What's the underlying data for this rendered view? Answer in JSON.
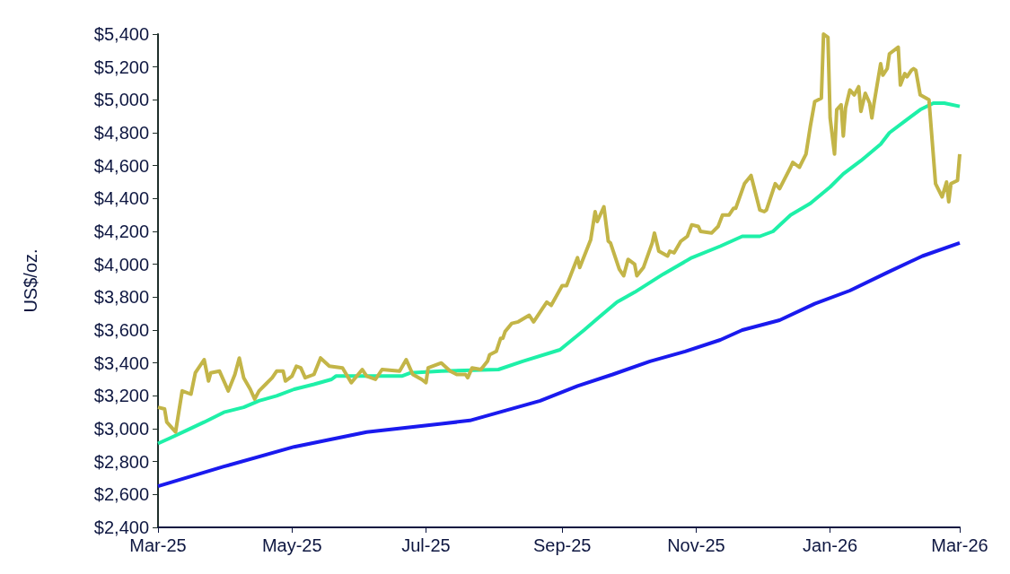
{
  "chart_data": {
    "type": "line",
    "ylabel": "US$/oz.",
    "xlim": [
      "2025-03-01",
      "2026-03-01"
    ],
    "xticks": [
      {
        "value": "2025-03-01",
        "label": "Mar-25"
      },
      {
        "value": "2025-05-01",
        "label": "May-25"
      },
      {
        "value": "2025-07-01",
        "label": "Jul-25"
      },
      {
        "value": "2025-09-01",
        "label": "Sep-25"
      },
      {
        "value": "2025-11-01",
        "label": "Nov-25"
      },
      {
        "value": "2026-01-01",
        "label": "Jan-26"
      },
      {
        "value": "2026-03-01",
        "label": "Mar-26"
      }
    ],
    "ylim": [
      2400,
      5400
    ],
    "yticks": [
      {
        "value": 2400,
        "label": "$2,400"
      },
      {
        "value": 2600,
        "label": "$2,600"
      },
      {
        "value": 2800,
        "label": "$2,800"
      },
      {
        "value": 3000,
        "label": "$3,000"
      },
      {
        "value": 3200,
        "label": "$3,200"
      },
      {
        "value": 3400,
        "label": "$3,400"
      },
      {
        "value": 3600,
        "label": "$3,600"
      },
      {
        "value": 3800,
        "label": "$3,800"
      },
      {
        "value": 4000,
        "label": "$4,000"
      },
      {
        "value": 4200,
        "label": "$4,200"
      },
      {
        "value": 4400,
        "label": "$4,400"
      },
      {
        "value": 4600,
        "label": "$4,600"
      },
      {
        "value": 4800,
        "label": "$4,800"
      },
      {
        "value": 5000,
        "label": "$5,000"
      },
      {
        "value": 5200,
        "label": "$5,200"
      },
      {
        "value": 5400,
        "label": "$5,400"
      }
    ],
    "grid": false,
    "series": [
      {
        "color": "#1a1aee",
        "x": [
          "2025-03-01",
          "2025-03-31",
          "2025-05-02",
          "2025-06-04",
          "2025-07-08",
          "2025-07-21",
          "2025-08-06",
          "2025-08-22",
          "2025-09-08",
          "2025-09-24",
          "2025-10-11",
          "2025-10-27",
          "2025-11-12",
          "2025-11-22",
          "2025-12-09",
          "2025-12-25",
          "2026-01-10",
          "2026-01-27",
          "2026-02-12",
          "2026-03-01"
        ],
        "values": [
          2650,
          2770,
          2890,
          2980,
          3030,
          3050,
          3110,
          3170,
          3260,
          3330,
          3410,
          3470,
          3540,
          3600,
          3660,
          3760,
          3840,
          3950,
          4050,
          4130
        ]
      },
      {
        "color": "#1ef0a8",
        "x": [
          "2025-03-01",
          "2025-03-06",
          "2025-03-14",
          "2025-03-22",
          "2025-03-31",
          "2025-04-09",
          "2025-04-16",
          "2025-04-24",
          "2025-05-02",
          "2025-05-11",
          "2025-05-19",
          "2025-05-21",
          "2025-05-27",
          "2025-06-12",
          "2025-06-20",
          "2025-06-24",
          "2025-07-08",
          "2025-08-03",
          "2025-08-14",
          "2025-08-31",
          "2025-09-11",
          "2025-09-18",
          "2025-09-26",
          "2025-10-04",
          "2025-10-17",
          "2025-10-30",
          "2025-11-12",
          "2025-11-22",
          "2025-11-30",
          "2025-12-06",
          "2025-12-14",
          "2025-12-23",
          "2026-01-01",
          "2026-01-07",
          "2026-01-15",
          "2026-01-24",
          "2026-01-28",
          "2026-02-04",
          "2026-02-11",
          "2026-02-17",
          "2026-02-22",
          "2026-03-01"
        ],
        "values": [
          2910,
          2940,
          2990,
          3040,
          3100,
          3130,
          3170,
          3200,
          3240,
          3270,
          3300,
          3320,
          3320,
          3320,
          3320,
          3340,
          3350,
          3360,
          3410,
          3480,
          3600,
          3680,
          3770,
          3830,
          3940,
          4040,
          4110,
          4170,
          4170,
          4200,
          4300,
          4370,
          4470,
          4550,
          4630,
          4730,
          4800,
          4870,
          4940,
          4980,
          4980,
          4960
        ]
      },
      {
        "color": "#c3b548",
        "x": [
          "2025-03-01",
          "2025-03-04",
          "2025-03-05",
          "2025-03-09",
          "2025-03-12",
          "2025-03-16",
          "2025-03-18",
          "2025-03-22",
          "2025-03-24",
          "2025-03-25",
          "2025-03-29",
          "2025-04-02",
          "2025-04-05",
          "2025-04-07",
          "2025-04-09",
          "2025-04-12",
          "2025-04-14",
          "2025-04-16",
          "2025-04-19",
          "2025-04-22",
          "2025-04-24",
          "2025-04-27",
          "2025-04-28",
          "2025-05-01",
          "2025-05-03",
          "2025-05-05",
          "2025-05-07",
          "2025-05-11",
          "2025-05-14",
          "2025-05-18",
          "2025-05-24",
          "2025-05-28",
          "2025-06-02",
          "2025-06-04",
          "2025-06-08",
          "2025-06-11",
          "2025-06-19",
          "2025-06-22",
          "2025-06-25",
          "2025-06-29",
          "2025-07-01",
          "2025-07-02",
          "2025-07-08",
          "2025-07-12",
          "2025-07-15",
          "2025-07-19",
          "2025-07-20",
          "2025-07-22",
          "2025-07-26",
          "2025-07-29",
          "2025-07-30",
          "2025-08-02",
          "2025-08-04",
          "2025-08-05",
          "2025-08-06",
          "2025-08-09",
          "2025-08-12",
          "2025-08-17",
          "2025-08-19",
          "2025-08-23",
          "2025-08-25",
          "2025-08-27",
          "2025-09-01",
          "2025-09-03",
          "2025-09-08",
          "2025-09-09",
          "2025-09-14",
          "2025-09-16",
          "2025-09-17",
          "2025-09-20",
          "2025-09-22",
          "2025-09-23",
          "2025-09-27",
          "2025-09-29",
          "2025-10-01",
          "2025-10-04",
          "2025-10-05",
          "2025-10-08",
          "2025-10-12",
          "2025-10-13",
          "2025-10-15",
          "2025-10-19",
          "2025-10-20",
          "2025-10-22",
          "2025-10-25",
          "2025-10-28",
          "2025-10-30",
          "2025-11-02",
          "2025-11-03",
          "2025-11-08",
          "2025-11-11",
          "2025-11-13",
          "2025-11-16",
          "2025-11-18",
          "2025-11-19",
          "2025-11-23",
          "2025-11-26",
          "2025-11-30",
          "2025-12-02",
          "2025-12-03",
          "2025-12-07",
          "2025-12-09",
          "2025-12-14",
          "2025-12-15",
          "2025-12-18",
          "2025-12-21",
          "2025-12-23",
          "2025-12-25",
          "2025-12-28",
          "2025-12-29",
          "2025-12-31",
          "2026-01-01",
          "2026-01-03",
          "2026-01-04",
          "2026-01-06",
          "2026-01-07",
          "2026-01-08",
          "2026-01-10",
          "2026-01-12",
          "2026-01-14",
          "2026-01-15",
          "2026-01-17",
          "2026-01-19",
          "2026-01-20",
          "2026-01-21",
          "2026-01-24",
          "2026-01-25",
          "2026-01-27",
          "2026-01-28",
          "2026-02-01",
          "2026-02-02",
          "2026-02-04",
          "2026-02-05",
          "2026-02-07",
          "2026-02-08",
          "2026-02-09",
          "2026-02-11",
          "2026-02-15",
          "2026-02-18",
          "2026-02-21",
          "2026-02-23",
          "2026-02-24",
          "2026-02-25",
          "2026-02-28",
          "2026-03-01"
        ],
        "values": [
          3130,
          3120,
          3040,
          2980,
          3230,
          3210,
          3340,
          3420,
          3290,
          3340,
          3350,
          3230,
          3330,
          3430,
          3310,
          3240,
          3180,
          3230,
          3270,
          3310,
          3350,
          3350,
          3290,
          3320,
          3380,
          3370,
          3310,
          3330,
          3430,
          3380,
          3370,
          3280,
          3360,
          3320,
          3300,
          3360,
          3350,
          3420,
          3330,
          3300,
          3280,
          3370,
          3400,
          3350,
          3330,
          3330,
          3310,
          3370,
          3360,
          3410,
          3450,
          3470,
          3550,
          3550,
          3590,
          3640,
          3650,
          3690,
          3650,
          3730,
          3770,
          3750,
          3870,
          3870,
          4040,
          3980,
          4150,
          4320,
          4260,
          4350,
          4140,
          4130,
          3970,
          3930,
          4030,
          4000,
          3930,
          3980,
          4130,
          4190,
          4080,
          4050,
          4080,
          4070,
          4140,
          4170,
          4240,
          4230,
          4200,
          4190,
          4230,
          4300,
          4300,
          4340,
          4340,
          4490,
          4540,
          4330,
          4320,
          4330,
          4490,
          4460,
          4590,
          4620,
          4590,
          4670,
          4840,
          4990,
          5010,
          5400,
          5380,
          4890,
          4670,
          4940,
          4970,
          4780,
          4950,
          5060,
          5030,
          5080,
          4930,
          5040,
          4980,
          4890,
          4980,
          5220,
          5150,
          5190,
          5280,
          5320,
          5090,
          5160,
          5140,
          5180,
          5190,
          5180,
          5030,
          5000,
          4490,
          4410,
          4500,
          4380,
          4490,
          4510,
          4670
        ]
      }
    ]
  }
}
